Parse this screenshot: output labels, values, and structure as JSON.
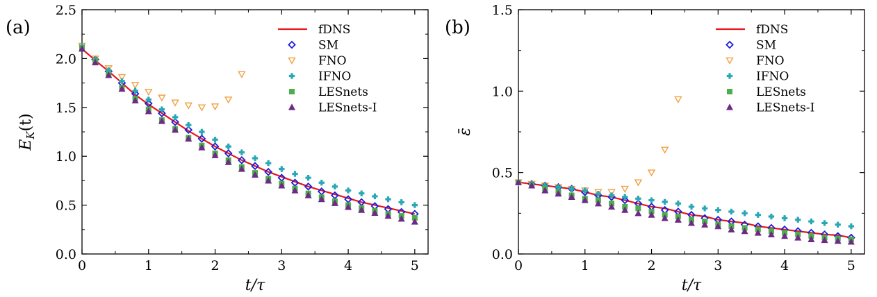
{
  "chart_data": [
    {
      "type": "line",
      "panel_label": "(a)",
      "xlabel": "t/τ",
      "ylabel_main": "E",
      "ylabel_sub": "K",
      "ylabel_tail": "(t)",
      "xlim": [
        0,
        5.2
      ],
      "ylim": [
        0,
        2.5
      ],
      "xticks": [
        "0",
        "1",
        "2",
        "3",
        "4",
        "5"
      ],
      "xtick_values": [
        0,
        1,
        2,
        3,
        4,
        5
      ],
      "yticks": [
        "0.0",
        "0.5",
        "1.0",
        "1.5",
        "2.0",
        "2.5"
      ],
      "ytick_values": [
        0,
        0.5,
        1.0,
        1.5,
        2.0,
        2.5
      ],
      "legend_position": "top-right",
      "series": [
        {
          "name": "fDNS",
          "kind": "line",
          "color": "#e8161b",
          "x": [
            0,
            0.2,
            0.4,
            0.6,
            0.8,
            1.0,
            1.2,
            1.4,
            1.6,
            1.8,
            2.0,
            2.2,
            2.4,
            2.6,
            2.8,
            3.0,
            3.2,
            3.4,
            3.6,
            3.8,
            4.0,
            4.2,
            4.4,
            4.6,
            4.8,
            5.0
          ],
          "y": [
            2.1,
            1.98,
            1.87,
            1.75,
            1.63,
            1.53,
            1.44,
            1.35,
            1.26,
            1.18,
            1.1,
            1.03,
            0.96,
            0.9,
            0.84,
            0.79,
            0.74,
            0.69,
            0.65,
            0.61,
            0.57,
            0.53,
            0.5,
            0.47,
            0.44,
            0.41
          ]
        },
        {
          "name": "SM",
          "kind": "marker",
          "marker": "diamond",
          "color": "#1c1cd9",
          "x": [
            0.2,
            0.4,
            0.6,
            0.8,
            1.0,
            1.2,
            1.4,
            1.6,
            1.8,
            2.0,
            2.2,
            2.4,
            2.6,
            2.8,
            3.0,
            3.2,
            3.4,
            3.6,
            3.8,
            4.0,
            4.2,
            4.4,
            4.6,
            4.8,
            5.0
          ],
          "y": [
            1.99,
            1.87,
            1.75,
            1.64,
            1.54,
            1.44,
            1.35,
            1.27,
            1.18,
            1.1,
            1.03,
            0.96,
            0.9,
            0.84,
            0.78,
            0.73,
            0.69,
            0.64,
            0.6,
            0.56,
            0.53,
            0.49,
            0.46,
            0.43,
            0.41
          ]
        },
        {
          "name": "FNO",
          "kind": "marker",
          "marker": "triangle-down",
          "color": "#f0a040",
          "x": [
            0,
            0.2,
            0.4,
            0.6,
            0.8,
            1.0,
            1.2,
            1.4,
            1.6,
            1.8,
            2.0,
            2.2,
            2.4
          ],
          "y": [
            2.13,
            2.0,
            1.9,
            1.81,
            1.73,
            1.66,
            1.6,
            1.55,
            1.52,
            1.5,
            1.51,
            1.58,
            1.84
          ]
        },
        {
          "name": "IFNO",
          "kind": "marker",
          "marker": "plus",
          "color": "#2aa7b5",
          "x": [
            0,
            0.2,
            0.4,
            0.6,
            0.8,
            1.0,
            1.2,
            1.4,
            1.6,
            1.8,
            2.0,
            2.2,
            2.4,
            2.6,
            2.8,
            3.0,
            3.2,
            3.4,
            3.6,
            3.8,
            4.0,
            4.2,
            4.4,
            4.6,
            4.8,
            5.0
          ],
          "y": [
            2.13,
            1.99,
            1.88,
            1.77,
            1.67,
            1.58,
            1.48,
            1.4,
            1.32,
            1.25,
            1.17,
            1.1,
            1.04,
            0.98,
            0.93,
            0.87,
            0.82,
            0.78,
            0.73,
            0.69,
            0.65,
            0.62,
            0.59,
            0.56,
            0.53,
            0.5
          ]
        },
        {
          "name": "LESnets",
          "kind": "marker",
          "marker": "square",
          "color": "#4cae4c",
          "x": [
            0,
            0.2,
            0.4,
            0.6,
            0.8,
            1.0,
            1.2,
            1.4,
            1.6,
            1.8,
            2.0,
            2.2,
            2.4,
            2.6,
            2.8,
            3.0,
            3.2,
            3.4,
            3.6,
            3.8,
            4.0,
            4.2,
            4.4,
            4.6,
            4.8,
            5.0
          ],
          "y": [
            2.11,
            1.97,
            1.84,
            1.7,
            1.59,
            1.48,
            1.37,
            1.28,
            1.19,
            1.11,
            1.03,
            0.96,
            0.89,
            0.83,
            0.77,
            0.72,
            0.67,
            0.62,
            0.58,
            0.54,
            0.5,
            0.47,
            0.44,
            0.41,
            0.39,
            0.37
          ]
        },
        {
          "name": "LESnets-I",
          "kind": "marker",
          "marker": "triangle-up",
          "color": "#6e2a86",
          "x": [
            0,
            0.2,
            0.4,
            0.6,
            0.8,
            1.0,
            1.2,
            1.4,
            1.6,
            1.8,
            2.0,
            2.2,
            2.4,
            2.6,
            2.8,
            3.0,
            3.2,
            3.4,
            3.6,
            3.8,
            4.0,
            4.2,
            4.4,
            4.6,
            4.8,
            5.0
          ],
          "y": [
            2.1,
            1.96,
            1.83,
            1.69,
            1.57,
            1.46,
            1.36,
            1.27,
            1.18,
            1.09,
            1.01,
            0.94,
            0.87,
            0.81,
            0.75,
            0.7,
            0.65,
            0.6,
            0.56,
            0.52,
            0.48,
            0.45,
            0.42,
            0.39,
            0.36,
            0.33
          ]
        }
      ]
    },
    {
      "type": "line",
      "panel_label": "(b)",
      "xlabel": "t/τ",
      "ylabel": "ε̄",
      "xlim": [
        0,
        5.2
      ],
      "ylim": [
        0,
        1.5
      ],
      "xticks": [
        "0",
        "1",
        "2",
        "3",
        "4",
        "5"
      ],
      "xtick_values": [
        0,
        1,
        2,
        3,
        4,
        5
      ],
      "yticks": [
        "0.0",
        "0.5",
        "1.0",
        "1.5"
      ],
      "ytick_values": [
        0,
        0.5,
        1.0,
        1.5
      ],
      "legend_position": "top-right",
      "series": [
        {
          "name": "fDNS",
          "kind": "line",
          "color": "#e8161b",
          "x": [
            0,
            0.2,
            0.4,
            0.6,
            0.8,
            1.0,
            1.2,
            1.4,
            1.6,
            1.8,
            2.0,
            2.2,
            2.4,
            2.6,
            2.8,
            3.0,
            3.2,
            3.4,
            3.6,
            3.8,
            4.0,
            4.2,
            4.4,
            4.6,
            4.8,
            5.0
          ],
          "y": [
            0.44,
            0.43,
            0.42,
            0.41,
            0.4,
            0.38,
            0.36,
            0.35,
            0.33,
            0.31,
            0.29,
            0.28,
            0.26,
            0.24,
            0.23,
            0.21,
            0.2,
            0.19,
            0.17,
            0.16,
            0.15,
            0.14,
            0.13,
            0.12,
            0.115,
            0.1
          ]
        },
        {
          "name": "SM",
          "kind": "marker",
          "marker": "diamond",
          "color": "#1c1cd9",
          "x": [
            0.2,
            0.4,
            0.6,
            0.8,
            1.0,
            1.2,
            1.4,
            1.6,
            1.8,
            2.0,
            2.2,
            2.4,
            2.6,
            2.8,
            3.0,
            3.2,
            3.4,
            3.6,
            3.8,
            4.0,
            4.2,
            4.4,
            4.6,
            4.8,
            5.0
          ],
          "y": [
            0.43,
            0.42,
            0.41,
            0.4,
            0.38,
            0.36,
            0.35,
            0.33,
            0.31,
            0.29,
            0.27,
            0.26,
            0.24,
            0.22,
            0.21,
            0.2,
            0.18,
            0.17,
            0.16,
            0.15,
            0.14,
            0.13,
            0.12,
            0.11,
            0.1
          ]
        },
        {
          "name": "FNO",
          "kind": "marker",
          "marker": "triangle-down",
          "color": "#f0a040",
          "x": [
            0,
            0.2,
            0.4,
            0.6,
            0.8,
            1.0,
            1.2,
            1.4,
            1.6,
            1.8,
            2.0,
            2.2,
            2.4
          ],
          "y": [
            0.44,
            0.43,
            0.42,
            0.41,
            0.4,
            0.39,
            0.38,
            0.38,
            0.4,
            0.44,
            0.5,
            0.64,
            0.95
          ]
        },
        {
          "name": "IFNO",
          "kind": "marker",
          "marker": "plus",
          "color": "#2aa7b5",
          "x": [
            0,
            0.2,
            0.4,
            0.6,
            0.8,
            1.0,
            1.2,
            1.4,
            1.6,
            1.8,
            2.0,
            2.2,
            2.4,
            2.6,
            2.8,
            3.0,
            3.2,
            3.4,
            3.6,
            3.8,
            4.0,
            4.2,
            4.4,
            4.6,
            4.8,
            5.0
          ],
          "y": [
            0.44,
            0.43,
            0.42,
            0.41,
            0.4,
            0.39,
            0.37,
            0.36,
            0.35,
            0.34,
            0.33,
            0.32,
            0.31,
            0.29,
            0.28,
            0.27,
            0.26,
            0.25,
            0.24,
            0.23,
            0.22,
            0.21,
            0.2,
            0.19,
            0.18,
            0.17
          ]
        },
        {
          "name": "LESnets",
          "kind": "marker",
          "marker": "square",
          "color": "#4cae4c",
          "x": [
            0,
            0.2,
            0.4,
            0.6,
            0.8,
            1.0,
            1.2,
            1.4,
            1.6,
            1.8,
            2.0,
            2.2,
            2.4,
            2.6,
            2.8,
            3.0,
            3.2,
            3.4,
            3.6,
            3.8,
            4.0,
            4.2,
            4.4,
            4.6,
            4.8,
            5.0
          ],
          "y": [
            0.44,
            0.42,
            0.4,
            0.38,
            0.36,
            0.34,
            0.33,
            0.31,
            0.29,
            0.28,
            0.26,
            0.24,
            0.23,
            0.21,
            0.2,
            0.18,
            0.17,
            0.16,
            0.15,
            0.14,
            0.13,
            0.12,
            0.11,
            0.1,
            0.095,
            0.09
          ]
        },
        {
          "name": "LESnets-I",
          "kind": "marker",
          "marker": "triangle-up",
          "color": "#6e2a86",
          "x": [
            0,
            0.2,
            0.4,
            0.6,
            0.8,
            1.0,
            1.2,
            1.4,
            1.6,
            1.8,
            2.0,
            2.2,
            2.4,
            2.6,
            2.8,
            3.0,
            3.2,
            3.4,
            3.6,
            3.8,
            4.0,
            4.2,
            4.4,
            4.6,
            4.8,
            5.0
          ],
          "y": [
            0.44,
            0.42,
            0.39,
            0.37,
            0.35,
            0.33,
            0.31,
            0.29,
            0.27,
            0.25,
            0.24,
            0.22,
            0.21,
            0.19,
            0.18,
            0.17,
            0.15,
            0.14,
            0.13,
            0.12,
            0.11,
            0.1,
            0.09,
            0.085,
            0.08,
            0.075
          ]
        }
      ]
    }
  ]
}
